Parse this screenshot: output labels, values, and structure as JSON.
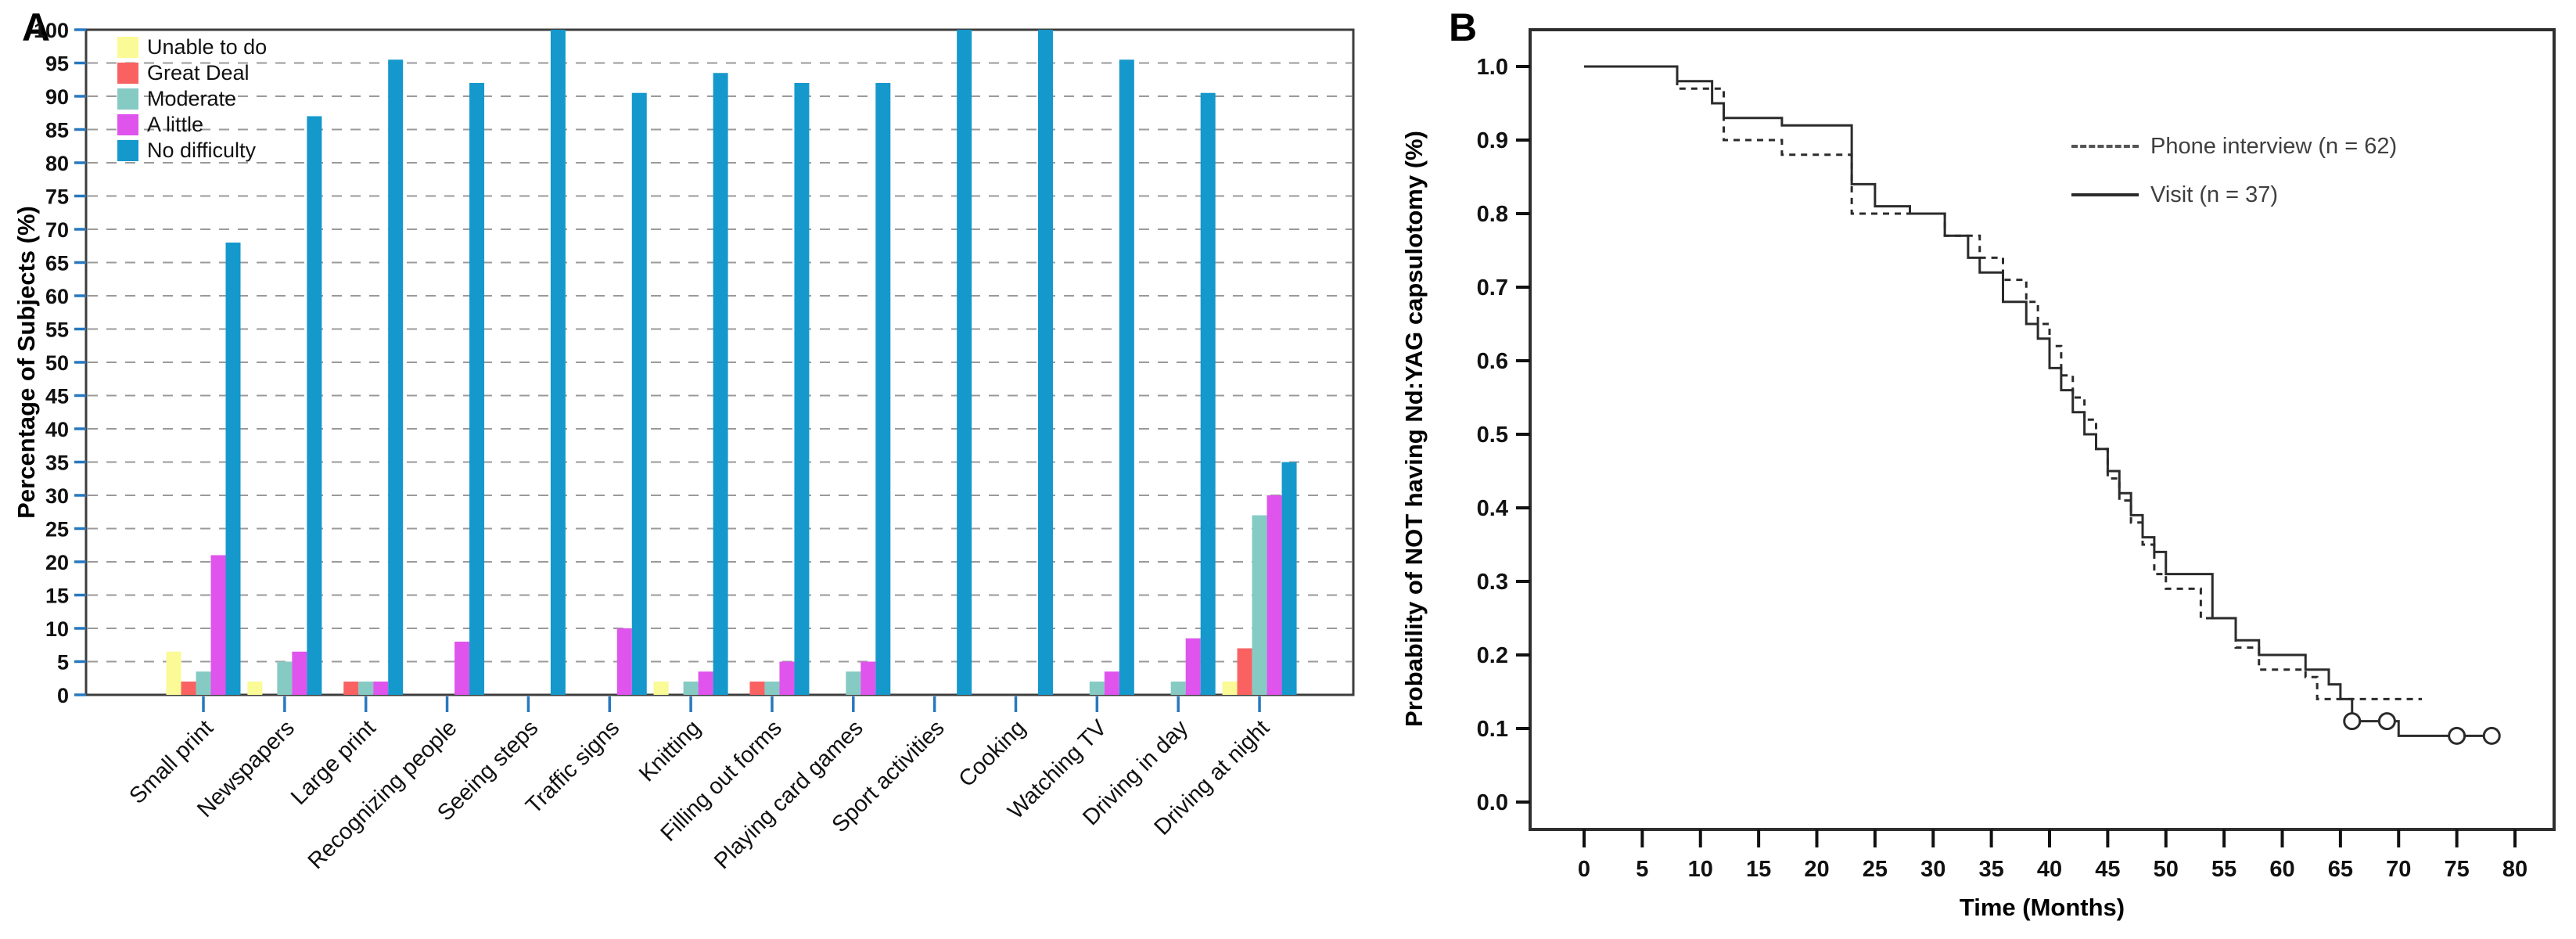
{
  "figure": {
    "panel_a_label": "A",
    "panel_b_label": "B"
  },
  "chart_data": [
    {
      "type": "bar",
      "panel": "A",
      "title": "",
      "xlabel": "",
      "ylabel": "Percentage of Subjects (%)",
      "ylim": [
        0,
        100
      ],
      "yticks": [
        0,
        5,
        10,
        15,
        20,
        25,
        30,
        35,
        40,
        45,
        50,
        55,
        60,
        65,
        70,
        75,
        80,
        85,
        90,
        95,
        100
      ],
      "grid": "dashed horizontal every 5",
      "legend_position": "top-left inside plot",
      "categories": [
        "Small print",
        "Newspapers",
        "Large print",
        "Recognizing people",
        "Seeing steps",
        "Traffic signs",
        "Knitting",
        "Filling out forms",
        "Playing card games",
        "Sport activities",
        "Cooking",
        "Watching TV",
        "Driving in day",
        "Driving at night"
      ],
      "series": [
        {
          "name": "Unable to do",
          "color": "#FAFA96",
          "values": [
            6.5,
            2,
            0,
            0,
            0,
            0,
            2,
            0,
            0,
            0,
            0,
            0,
            0,
            2
          ]
        },
        {
          "name": "Great Deal",
          "color": "#FA6262",
          "values": [
            2,
            0,
            2,
            0,
            0,
            0,
            0,
            2,
            0,
            0,
            0,
            0,
            0,
            7
          ]
        },
        {
          "name": "Moderate",
          "color": "#85CBC4",
          "values": [
            3.5,
            5,
            2,
            0,
            0,
            0,
            2,
            2,
            3.5,
            0,
            0,
            2,
            2,
            27
          ]
        },
        {
          "name": "A little",
          "color": "#DF54EC",
          "values": [
            21,
            6.5,
            2,
            8,
            0,
            10,
            3.5,
            5,
            5,
            0,
            0,
            3.5,
            8.5,
            30
          ]
        },
        {
          "name": "No difficulty",
          "color": "#1598CC",
          "values": [
            68,
            87,
            95.5,
            92,
            100,
            90.5,
            93.5,
            92,
            92,
            100,
            100,
            95.5,
            90.5,
            35
          ]
        }
      ],
      "axis_tick_color": "#2878BE",
      "gridline_color": "#9A9A9A"
    },
    {
      "type": "line",
      "panel": "B",
      "subtype": "kaplan-meier-step",
      "title": "",
      "xlabel": "Time (Months)",
      "ylabel": "Probability of NOT having Nd:YAG capsulotomy (%)",
      "xlim": [
        0,
        80
      ],
      "ylim": [
        0.0,
        1.0
      ],
      "xticks": [
        0,
        5,
        10,
        15,
        20,
        25,
        30,
        35,
        40,
        45,
        50,
        55,
        60,
        65,
        70,
        75,
        80
      ],
      "yticks": [
        "0.0",
        "0.1",
        "0.2",
        "0.3",
        "0.4",
        "0.5",
        "0.6",
        "0.7",
        "0.8",
        "0.9",
        "1.0"
      ],
      "grid": "off",
      "legend_position": "upper-right inside plot",
      "line_color": "#2b2b2b",
      "series": [
        {
          "name": "Phone interview (n = 62)",
          "style": "dashed",
          "points": [
            [
              0,
              1.0
            ],
            [
              8,
              0.97
            ],
            [
              12,
              0.9
            ],
            [
              17,
              0.88
            ],
            [
              23,
              0.8
            ],
            [
              31,
              0.77
            ],
            [
              34,
              0.74
            ],
            [
              36,
              0.71
            ],
            [
              38,
              0.68
            ],
            [
              39,
              0.65
            ],
            [
              40,
              0.62
            ],
            [
              41,
              0.58
            ],
            [
              42,
              0.55
            ],
            [
              43,
              0.52
            ],
            [
              44,
              0.48
            ],
            [
              45,
              0.44
            ],
            [
              46,
              0.41
            ],
            [
              47,
              0.38
            ],
            [
              48,
              0.35
            ],
            [
              49,
              0.31
            ],
            [
              50,
              0.29
            ],
            [
              53,
              0.25
            ],
            [
              56,
              0.21
            ],
            [
              58,
              0.18
            ],
            [
              62,
              0.17
            ],
            [
              63,
              0.14
            ],
            [
              72,
              0.14
            ]
          ]
        },
        {
          "name": "Visit (n = 37)",
          "style": "solid",
          "points": [
            [
              0,
              1.0
            ],
            [
              8,
              0.98
            ],
            [
              11,
              0.95
            ],
            [
              12,
              0.93
            ],
            [
              17,
              0.92
            ],
            [
              23,
              0.84
            ],
            [
              25,
              0.81
            ],
            [
              28,
              0.8
            ],
            [
              31,
              0.77
            ],
            [
              33,
              0.74
            ],
            [
              34,
              0.72
            ],
            [
              36,
              0.68
            ],
            [
              38,
              0.65
            ],
            [
              39,
              0.63
            ],
            [
              40,
              0.59
            ],
            [
              41,
              0.56
            ],
            [
              42,
              0.53
            ],
            [
              43,
              0.5
            ],
            [
              44,
              0.48
            ],
            [
              45,
              0.45
            ],
            [
              46,
              0.42
            ],
            [
              47,
              0.39
            ],
            [
              48,
              0.36
            ],
            [
              49,
              0.34
            ],
            [
              50,
              0.31
            ],
            [
              54,
              0.25
            ],
            [
              56,
              0.22
            ],
            [
              58,
              0.2
            ],
            [
              62,
              0.18
            ],
            [
              64,
              0.16
            ],
            [
              65,
              0.14
            ],
            [
              66,
              0.11
            ],
            [
              70,
              0.09
            ],
            [
              78,
              0.09
            ]
          ],
          "censor_marks": [
            [
              66,
              0.11
            ],
            [
              69,
              0.11
            ],
            [
              75,
              0.09
            ],
            [
              78,
              0.09
            ]
          ]
        }
      ]
    }
  ]
}
